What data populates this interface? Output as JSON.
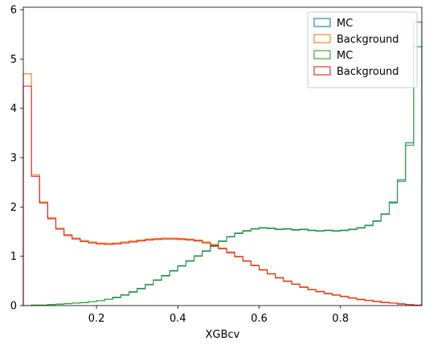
{
  "chart_data": {
    "type": "step-histogram",
    "xlabel": "XGBcv",
    "ylabel": "",
    "xlim": [
      0.02,
      1.0
    ],
    "ylim": [
      0,
      6.05
    ],
    "xticks": [
      0.2,
      0.4,
      0.6,
      0.8
    ],
    "yticks": [
      0,
      1,
      2,
      3,
      4,
      5,
      6
    ],
    "legend_position": "top-right",
    "bin_edges": [
      0.02,
      0.04,
      0.06,
      0.08,
      0.1,
      0.12,
      0.14,
      0.16,
      0.18,
      0.2,
      0.22,
      0.24,
      0.26,
      0.28,
      0.3,
      0.32,
      0.34,
      0.36,
      0.38,
      0.4,
      0.42,
      0.44,
      0.46,
      0.48,
      0.5,
      0.52,
      0.54,
      0.56,
      0.58,
      0.6,
      0.62,
      0.64,
      0.66,
      0.68,
      0.7,
      0.72,
      0.74,
      0.76,
      0.78,
      0.8,
      0.82,
      0.84,
      0.86,
      0.88,
      0.9,
      0.92,
      0.94,
      0.96,
      0.98,
      1.0
    ],
    "series": [
      {
        "name": "MC",
        "color": "#1f77b4",
        "values": [
          0.0,
          0.01,
          0.01,
          0.02,
          0.03,
          0.04,
          0.05,
          0.06,
          0.08,
          0.1,
          0.13,
          0.17,
          0.22,
          0.28,
          0.35,
          0.43,
          0.52,
          0.61,
          0.71,
          0.81,
          0.91,
          1.01,
          1.11,
          1.21,
          1.31,
          1.4,
          1.47,
          1.52,
          1.56,
          1.58,
          1.57,
          1.55,
          1.56,
          1.54,
          1.55,
          1.53,
          1.52,
          1.53,
          1.52,
          1.53,
          1.55,
          1.58,
          1.63,
          1.72,
          1.86,
          2.1,
          2.55,
          3.3,
          5.25
        ]
      },
      {
        "name": "Background",
        "color": "#ff7f0e",
        "values": [
          4.7,
          2.65,
          2.1,
          1.78,
          1.57,
          1.44,
          1.37,
          1.32,
          1.29,
          1.27,
          1.26,
          1.27,
          1.29,
          1.31,
          1.33,
          1.35,
          1.36,
          1.37,
          1.37,
          1.36,
          1.35,
          1.33,
          1.29,
          1.24,
          1.17,
          1.09,
          1.0,
          0.91,
          0.82,
          0.73,
          0.65,
          0.57,
          0.5,
          0.44,
          0.38,
          0.33,
          0.29,
          0.25,
          0.22,
          0.19,
          0.16,
          0.13,
          0.11,
          0.09,
          0.07,
          0.05,
          0.04,
          0.02,
          0.01
        ]
      },
      {
        "name": "MC",
        "color": "#2ca02c",
        "values": [
          0.0,
          0.01,
          0.01,
          0.02,
          0.03,
          0.04,
          0.05,
          0.06,
          0.08,
          0.1,
          0.13,
          0.16,
          0.21,
          0.27,
          0.34,
          0.42,
          0.51,
          0.6,
          0.7,
          0.8,
          0.9,
          1.0,
          1.1,
          1.2,
          1.3,
          1.39,
          1.46,
          1.51,
          1.55,
          1.57,
          1.56,
          1.54,
          1.55,
          1.53,
          1.54,
          1.52,
          1.51,
          1.52,
          1.51,
          1.52,
          1.54,
          1.57,
          1.62,
          1.71,
          1.85,
          2.08,
          2.52,
          3.25,
          5.75
        ]
      },
      {
        "name": "Background",
        "color": "#d62728",
        "values": [
          4.45,
          2.62,
          2.08,
          1.76,
          1.55,
          1.42,
          1.35,
          1.3,
          1.27,
          1.25,
          1.24,
          1.25,
          1.27,
          1.29,
          1.31,
          1.33,
          1.34,
          1.35,
          1.35,
          1.34,
          1.33,
          1.31,
          1.27,
          1.22,
          1.15,
          1.07,
          0.99,
          0.9,
          0.81,
          0.72,
          0.64,
          0.56,
          0.49,
          0.43,
          0.37,
          0.32,
          0.28,
          0.24,
          0.21,
          0.18,
          0.15,
          0.12,
          0.1,
          0.08,
          0.06,
          0.05,
          0.03,
          0.02,
          0.01
        ]
      }
    ]
  }
}
